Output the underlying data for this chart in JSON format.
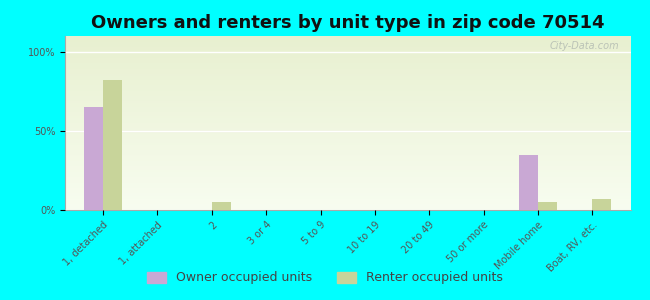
{
  "title": "Owners and renters by unit type in zip code 70514",
  "categories": [
    "1, detached",
    "1, attached",
    "2",
    "3 or 4",
    "5 to 9",
    "10 to 19",
    "20 to 49",
    "50 or more",
    "Mobile home",
    "Boat, RV, etc."
  ],
  "owner_values": [
    65,
    0,
    0,
    0,
    0,
    0,
    0,
    0,
    35,
    0
  ],
  "renter_values": [
    82,
    0,
    5,
    0,
    0,
    0,
    0,
    0,
    5,
    7
  ],
  "owner_color": "#c9a8d4",
  "renter_color": "#c8d49a",
  "background_color": "#00ffff",
  "ylabel_ticks": [
    "0%",
    "50%",
    "100%"
  ],
  "ytick_vals": [
    0,
    50,
    100
  ],
  "ylim": [
    0,
    110
  ],
  "bar_width": 0.35,
  "title_fontsize": 13,
  "tick_fontsize": 7,
  "legend_fontsize": 9,
  "owner_label": "Owner occupied units",
  "renter_label": "Renter occupied units",
  "watermark": "City-Data.com"
}
